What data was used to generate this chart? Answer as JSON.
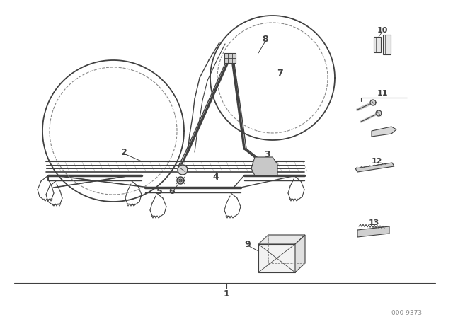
{
  "bg_color": "#ffffff",
  "line_color": "#404040",
  "dash_color": "#888888",
  "fig_w": 6.4,
  "fig_h": 4.48,
  "dpi": 100,
  "footer_code": "000 9373"
}
